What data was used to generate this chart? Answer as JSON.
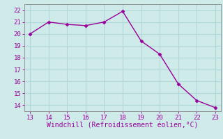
{
  "x": [
    13,
    14,
    15,
    16,
    17,
    18,
    19,
    20,
    21,
    22,
    23
  ],
  "y": [
    20.0,
    21.0,
    20.8,
    20.7,
    21.0,
    21.9,
    19.4,
    18.3,
    15.8,
    14.4,
    13.8
  ],
  "line_color": "#990099",
  "marker": "D",
  "marker_size": 2.5,
  "xlabel": "Windchill (Refroidissement éolien,°C)",
  "xlim_min": 12.7,
  "xlim_max": 23.3,
  "ylim_min": 13.5,
  "ylim_max": 22.5,
  "xticks": [
    13,
    14,
    15,
    16,
    17,
    18,
    19,
    20,
    21,
    22,
    23
  ],
  "yticks": [
    14,
    15,
    16,
    17,
    18,
    19,
    20,
    21,
    22
  ],
  "bg_color": "#ceeae9",
  "grid_color": "#b0d8d8",
  "tick_color": "#990099",
  "label_color": "#990099",
  "spine_color": "#888888",
  "tick_fontsize": 6.5,
  "xlabel_fontsize": 7.0,
  "linewidth": 1.0
}
